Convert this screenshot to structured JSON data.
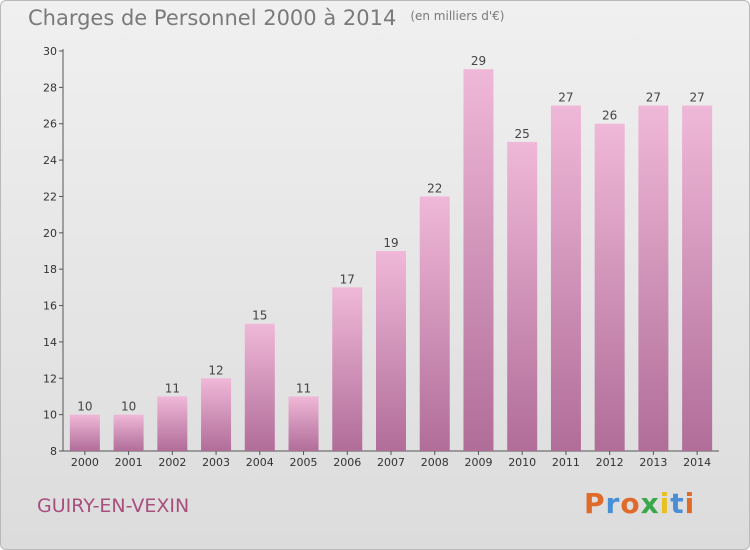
{
  "header": {
    "title": "Charges de Personnel 2000 à 2014",
    "subtitle": "(en milliers d'€)"
  },
  "footer": {
    "commune": "GUIRY-EN-VEXIN",
    "brand": "Proxiti"
  },
  "colors": {
    "bar_light": "#f0b8d8",
    "bar_dark": "#b06d98",
    "text_commune": "#a84f7e",
    "brand_letters": [
      "#e06a2a",
      "#4a8fd6",
      "#e06a2a",
      "#3aa84a",
      "#e8c020",
      "#4a8fd6",
      "#e06a2a"
    ]
  },
  "chart_data": {
    "type": "bar",
    "title": "Charges de Personnel 2000 à 2014",
    "subtitle": "(en milliers d'€)",
    "categories": [
      "2000",
      "2001",
      "2002",
      "2003",
      "2004",
      "2005",
      "2006",
      "2007",
      "2008",
      "2009",
      "2010",
      "2011",
      "2012",
      "2013",
      "2014"
    ],
    "values": [
      10,
      10,
      11,
      12,
      15,
      11,
      17,
      19,
      22,
      29,
      25,
      27,
      26,
      27,
      27
    ],
    "ylim": [
      8,
      30
    ],
    "yticks": [
      8,
      10,
      12,
      14,
      16,
      18,
      20,
      22,
      24,
      26,
      28,
      30
    ],
    "grid": false,
    "legend": "none"
  }
}
